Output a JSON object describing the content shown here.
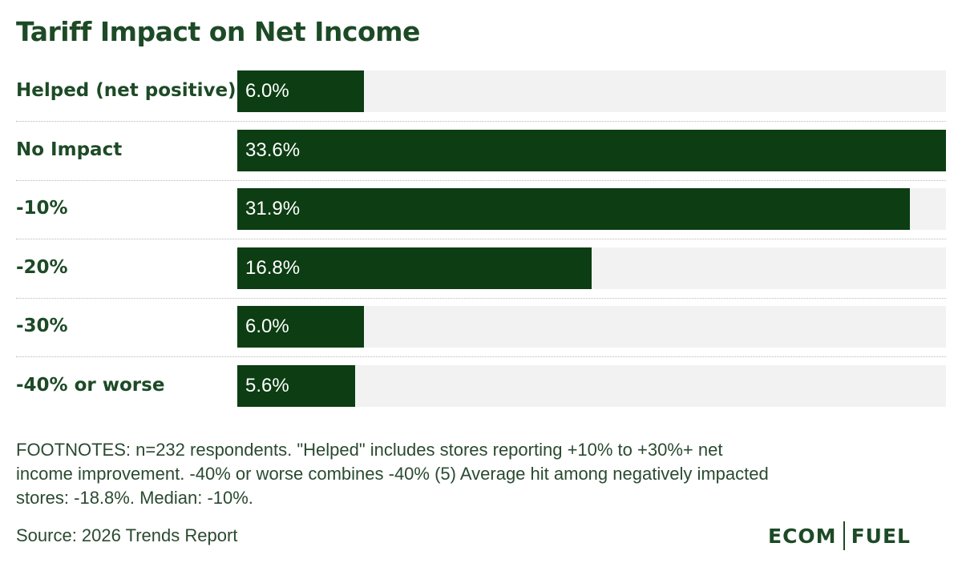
{
  "chart_data": {
    "type": "bar",
    "orientation": "horizontal",
    "title": "Tariff Impact on Net Income",
    "categories": [
      "Helped (net positive)",
      "No Impact",
      "-10%",
      "-20%",
      "-30%",
      "-40% or worse"
    ],
    "values": [
      6.0,
      33.6,
      31.9,
      16.8,
      6.0,
      5.6
    ],
    "value_labels": [
      "6.0%",
      "33.6%",
      "31.9%",
      "16.8%",
      "6.0%",
      "5.6%"
    ],
    "xlim": [
      0,
      33.6
    ],
    "grid": false,
    "legend": "none"
  },
  "footnote": "FOOTNOTES: n=232 respondents. \"Helped\" includes stores reporting +10% to +30%+ net income improvement. -40% or worse combines -40% (5) Average hit among negatively impacted stores: -18.8%. Median: -10%.",
  "source": "Source: 2026 Trends Report",
  "logo": {
    "left": "ECOM",
    "right": "FUEL"
  },
  "colors": {
    "bar": "#0d3d13",
    "track": "#f2f2f2",
    "text": "#1d4a26"
  }
}
